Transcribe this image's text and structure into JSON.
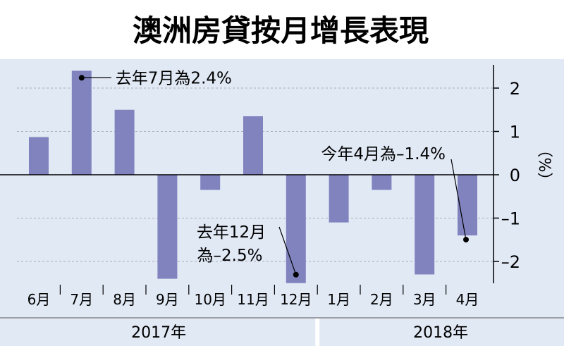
{
  "chart_data": {
    "type": "bar",
    "title": "澳洲房貸按月增長表現",
    "categories": [
      "6月",
      "7月",
      "8月",
      "9月",
      "10月",
      "11月",
      "12月",
      "1月",
      "2月",
      "3月",
      "4月"
    ],
    "values": [
      0.87,
      2.4,
      1.5,
      -2.4,
      -0.35,
      1.35,
      -2.5,
      -1.1,
      -0.35,
      -2.3,
      -1.4
    ],
    "ylabel": "（%）",
    "ylim": [
      -2.6,
      2.6
    ],
    "yticks": [
      {
        "value": 2,
        "label": "2"
      },
      {
        "value": 1,
        "label": "1"
      },
      {
        "value": 0,
        "label": "0"
      },
      {
        "value": -1,
        "label": "–1"
      },
      {
        "value": -2,
        "label": "–2"
      }
    ],
    "year_groups": [
      {
        "label": "2017年",
        "start": 0,
        "end": 6
      },
      {
        "label": "2018年",
        "start": 7,
        "end": 10
      }
    ],
    "annotations": [
      {
        "index": 1,
        "text": "去年7月為2.4%"
      },
      {
        "index": 6,
        "text_line1": "去年12月",
        "text_line2": "為–2.5%"
      },
      {
        "index": 10,
        "text": "今年4月為–1.4%"
      }
    ],
    "grid": true,
    "colors": {
      "background": "#e1e9f5",
      "bar": "#8183bf",
      "grid": "#a9adb8",
      "title_band": "#ffffff",
      "text": "#000000"
    }
  }
}
